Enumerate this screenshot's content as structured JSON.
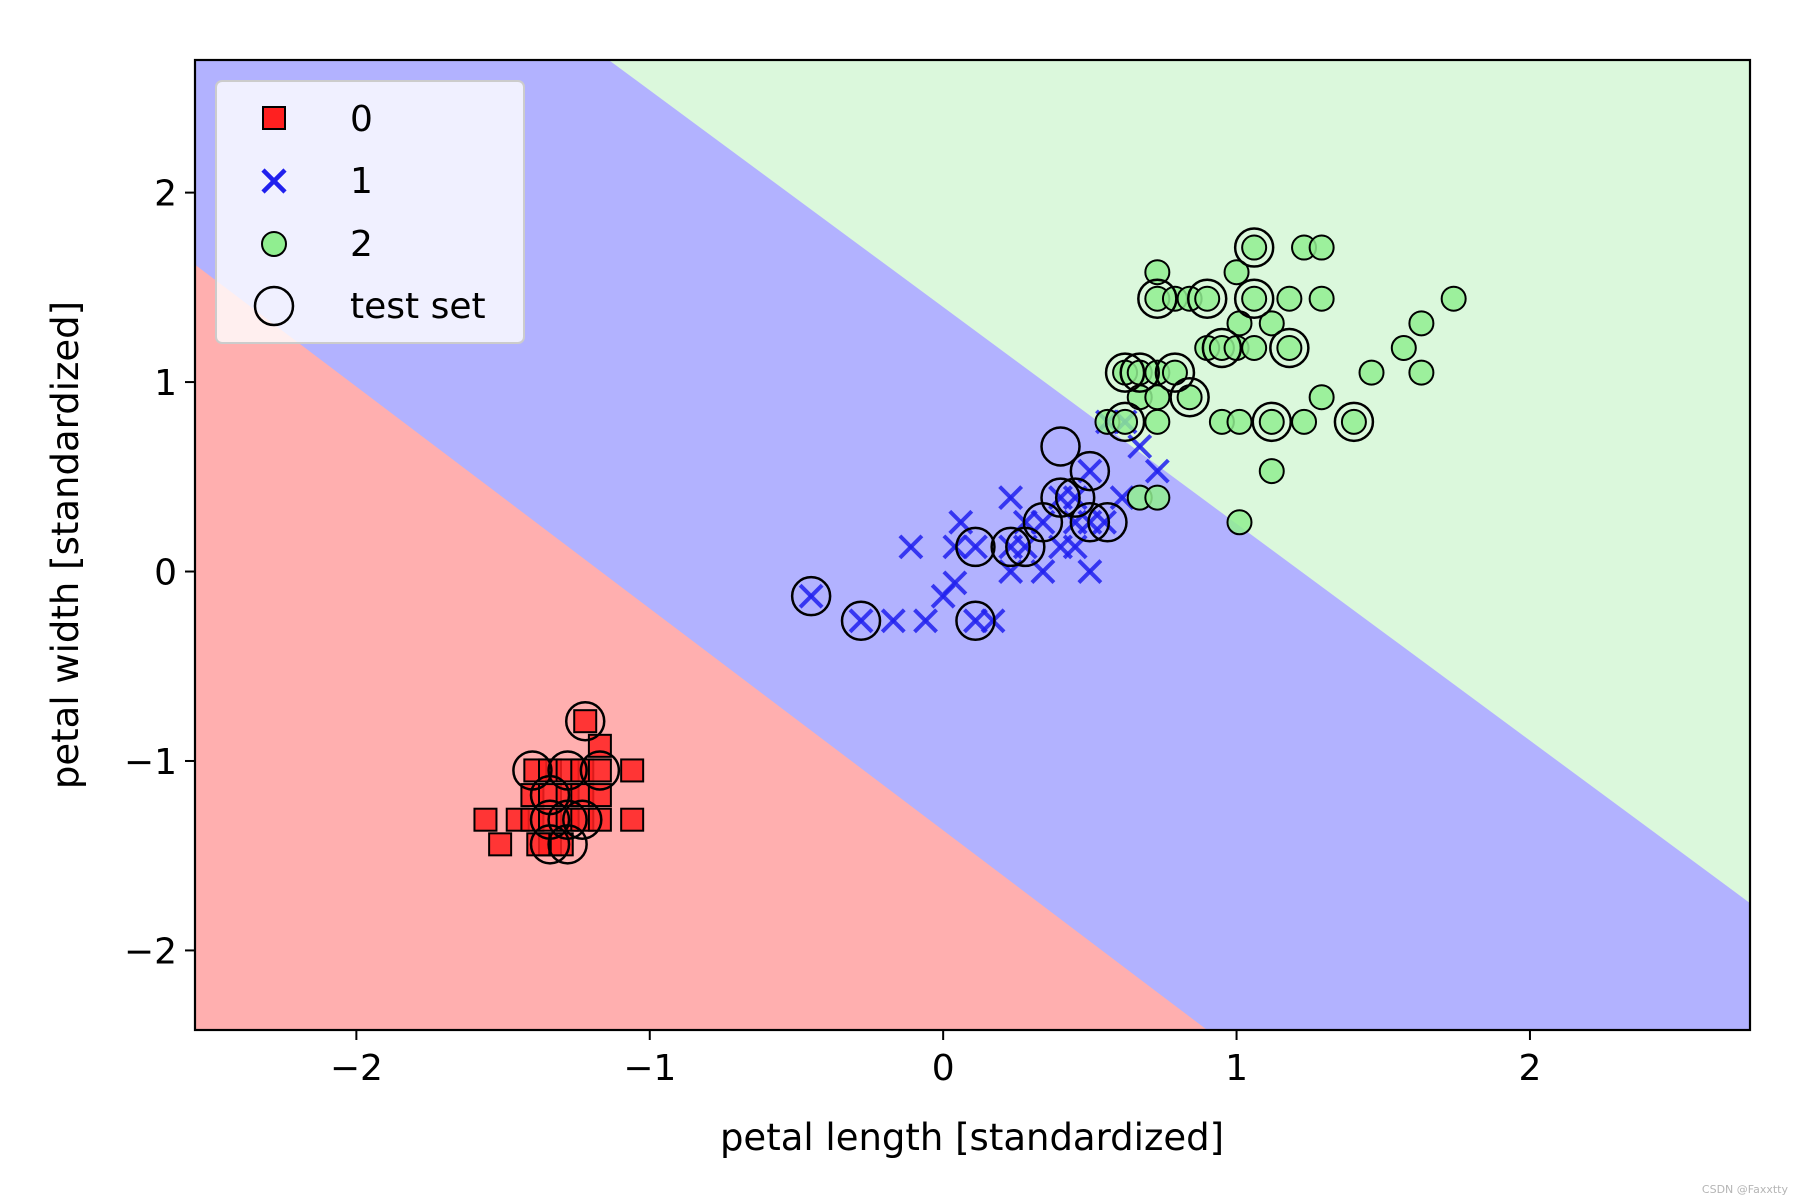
{
  "chart_data": {
    "type": "scatter",
    "title": "",
    "xlabel": "petal length [standardized]",
    "ylabel": "petal width [standardized]",
    "xlim": [
      -2.55,
      2.75
    ],
    "ylim": [
      -2.42,
      2.7
    ],
    "xticks": [
      -2,
      -1,
      0,
      1,
      2
    ],
    "yticks": [
      -2,
      -1,
      0,
      1,
      2
    ],
    "grid": false,
    "legend_position": "upper-left",
    "regions": [
      {
        "class": "0",
        "color": "#ffafaf",
        "label": "class 0 region"
      },
      {
        "class": "1",
        "color": "#b2b2ff",
        "label": "class 1 region"
      },
      {
        "class": "2",
        "color": "#dbf8dc",
        "label": "class 2 region"
      }
    ],
    "decision_boundaries": [
      {
        "between": [
          "0",
          "1"
        ],
        "points": [
          [
            -2.55,
            1.62
          ],
          [
            0.9,
            -2.42
          ]
        ]
      },
      {
        "between": [
          "1",
          "2"
        ],
        "points": [
          [
            -1.14,
            2.7
          ],
          [
            2.75,
            -1.75
          ]
        ]
      }
    ],
    "series": [
      {
        "name": "0",
        "marker": "square",
        "color": "#ff2020",
        "points": [
          [
            -1.56,
            -1.31
          ],
          [
            -1.51,
            -1.44
          ],
          [
            -1.45,
            -1.31
          ],
          [
            -1.4,
            -1.31
          ],
          [
            -1.4,
            -1.18
          ],
          [
            -1.39,
            -1.05
          ],
          [
            -1.34,
            -1.05
          ],
          [
            -1.34,
            -1.18
          ],
          [
            -1.34,
            -1.31
          ],
          [
            -1.34,
            -1.44
          ],
          [
            -1.28,
            -1.05
          ],
          [
            -1.28,
            -1.18
          ],
          [
            -1.28,
            -1.31
          ],
          [
            -1.23,
            -1.05
          ],
          [
            -1.23,
            -1.18
          ],
          [
            -1.23,
            -1.31
          ],
          [
            -1.22,
            -0.79
          ],
          [
            -1.17,
            -0.92
          ],
          [
            -1.17,
            -1.05
          ],
          [
            -1.17,
            -1.18
          ],
          [
            -1.17,
            -1.31
          ],
          [
            -1.06,
            -1.05
          ],
          [
            -1.06,
            -1.31
          ],
          [
            -1.38,
            -1.44
          ],
          [
            -1.3,
            -1.44
          ]
        ]
      },
      {
        "name": "1",
        "marker": "x",
        "color": "#2020ee",
        "points": [
          [
            -0.45,
            -0.13
          ],
          [
            -0.28,
            -0.26
          ],
          [
            -0.17,
            -0.26
          ],
          [
            -0.11,
            0.13
          ],
          [
            -0.06,
            -0.26
          ],
          [
            0.0,
            -0.13
          ],
          [
            0.04,
            0.13
          ],
          [
            0.06,
            0.26
          ],
          [
            0.04,
            -0.06
          ],
          [
            0.11,
            -0.26
          ],
          [
            0.11,
            0.13
          ],
          [
            0.17,
            -0.26
          ],
          [
            0.23,
            0.13
          ],
          [
            0.23,
            0.39
          ],
          [
            0.23,
            0.0
          ],
          [
            0.28,
            0.13
          ],
          [
            0.28,
            0.26
          ],
          [
            0.34,
            0.0
          ],
          [
            0.34,
            0.26
          ],
          [
            0.4,
            0.39
          ],
          [
            0.4,
            0.13
          ],
          [
            0.45,
            0.39
          ],
          [
            0.45,
            0.26
          ],
          [
            0.45,
            0.13
          ],
          [
            0.5,
            0.26
          ],
          [
            0.5,
            0.53
          ],
          [
            0.5,
            0.0
          ],
          [
            0.55,
            0.26
          ],
          [
            0.61,
            0.39
          ],
          [
            0.67,
            0.66
          ],
          [
            0.73,
            0.53
          ],
          [
            0.56,
            0.79
          ],
          [
            0.62,
            0.79
          ]
        ]
      },
      {
        "name": "2",
        "marker": "circle",
        "color": "#90ee90",
        "points": [
          [
            0.56,
            0.79
          ],
          [
            0.62,
            0.79
          ],
          [
            0.62,
            1.05
          ],
          [
            0.67,
            1.05
          ],
          [
            0.67,
            0.92
          ],
          [
            0.67,
            0.39
          ],
          [
            0.73,
            0.79
          ],
          [
            0.73,
            0.92
          ],
          [
            0.73,
            1.05
          ],
          [
            0.73,
            1.44
          ],
          [
            0.73,
            1.58
          ],
          [
            0.73,
            0.39
          ],
          [
            0.79,
            1.05
          ],
          [
            0.79,
            1.44
          ],
          [
            0.84,
            0.92
          ],
          [
            0.84,
            1.44
          ],
          [
            0.9,
            1.18
          ],
          [
            0.9,
            1.44
          ],
          [
            0.95,
            0.79
          ],
          [
            0.95,
            1.18
          ],
          [
            1.0,
            1.18
          ],
          [
            1.0,
            1.58
          ],
          [
            1.01,
            1.31
          ],
          [
            1.01,
            0.79
          ],
          [
            1.01,
            0.26
          ],
          [
            1.06,
            1.18
          ],
          [
            1.06,
            1.44
          ],
          [
            1.06,
            1.71
          ],
          [
            1.12,
            1.31
          ],
          [
            1.12,
            0.79
          ],
          [
            1.12,
            0.53
          ],
          [
            1.18,
            1.18
          ],
          [
            1.18,
            1.44
          ],
          [
            1.23,
            1.71
          ],
          [
            1.23,
            0.79
          ],
          [
            1.29,
            1.71
          ],
          [
            1.29,
            0.92
          ],
          [
            1.29,
            1.44
          ],
          [
            1.4,
            0.79
          ],
          [
            1.46,
            1.05
          ],
          [
            1.57,
            1.18
          ],
          [
            1.63,
            1.31
          ],
          [
            1.63,
            1.05
          ],
          [
            1.74,
            1.44
          ]
        ]
      }
    ],
    "test_set": {
      "name": "test set",
      "marker": "open-circle",
      "color": "#000000",
      "points": [
        [
          -1.4,
          -1.05
        ],
        [
          -1.34,
          -1.18
        ],
        [
          -1.28,
          -1.05
        ],
        [
          -1.34,
          -1.31
        ],
        [
          -1.28,
          -1.31
        ],
        [
          -1.23,
          -1.31
        ],
        [
          -1.34,
          -1.44
        ],
        [
          -1.28,
          -1.44
        ],
        [
          -1.22,
          -0.79
        ],
        [
          -1.17,
          -1.05
        ],
        [
          -0.45,
          -0.13
        ],
        [
          -0.28,
          -0.26
        ],
        [
          0.11,
          -0.26
        ],
        [
          0.11,
          0.13
        ],
        [
          0.23,
          0.13
        ],
        [
          0.28,
          0.13
        ],
        [
          0.34,
          0.26
        ],
        [
          0.4,
          0.66
        ],
        [
          0.4,
          0.39
        ],
        [
          0.45,
          0.39
        ],
        [
          0.5,
          0.26
        ],
        [
          0.5,
          0.53
        ],
        [
          0.56,
          0.26
        ],
        [
          0.62,
          0.79
        ],
        [
          0.62,
          1.05
        ],
        [
          0.67,
          1.05
        ],
        [
          0.73,
          1.44
        ],
        [
          0.79,
          1.05
        ],
        [
          0.84,
          0.92
        ],
        [
          0.9,
          1.44
        ],
        [
          0.95,
          1.18
        ],
        [
          1.06,
          1.44
        ],
        [
          1.06,
          1.71
        ],
        [
          1.12,
          0.79
        ],
        [
          1.18,
          1.18
        ],
        [
          1.4,
          0.79
        ]
      ]
    },
    "legend": {
      "items": [
        "0",
        "1",
        "2",
        "test set"
      ]
    }
  },
  "watermark": "CSDN @Faxxtty"
}
